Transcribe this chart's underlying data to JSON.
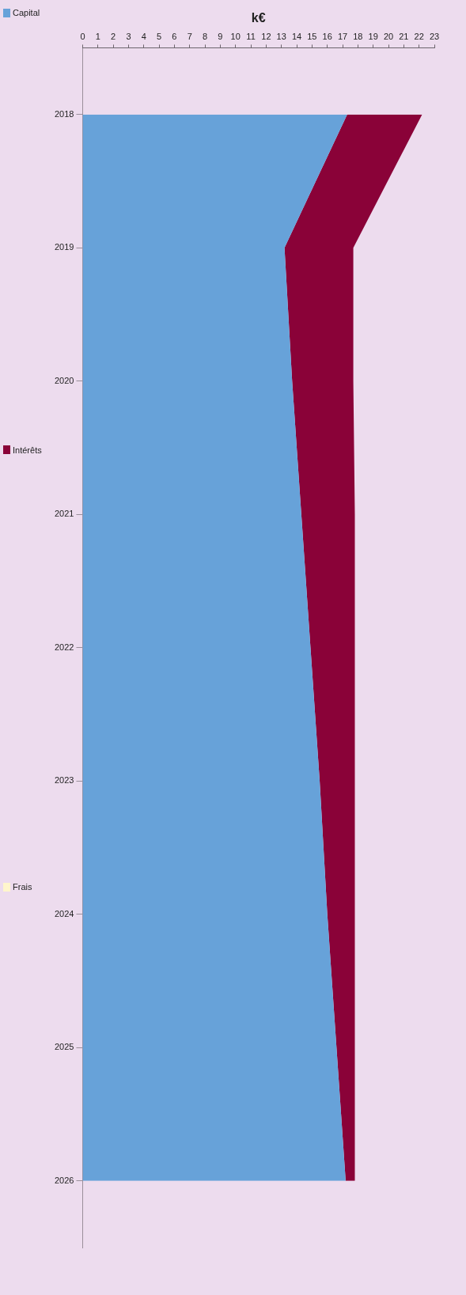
{
  "chart_data": {
    "type": "area",
    "orientation": "horizontal",
    "xlabel": "k€",
    "categories": [
      "2018",
      "2019",
      "2020",
      "2021",
      "2022",
      "2023",
      "2024",
      "2025",
      "2026"
    ],
    "stacked": true,
    "xlim": [
      0,
      23
    ],
    "xticks": [
      0,
      1,
      2,
      3,
      4,
      5,
      6,
      7,
      8,
      9,
      10,
      11,
      12,
      13,
      14,
      15,
      16,
      17,
      18,
      19,
      20,
      21,
      22,
      23
    ],
    "grid": false,
    "legend": "left",
    "series": [
      {
        "name": "Capital",
        "color": "#67a2d9",
        "values": [
          17.3,
          13.2,
          13.7,
          14.3,
          14.9,
          15.5,
          16.0,
          16.6,
          17.2
        ]
      },
      {
        "name": "Intérêts",
        "color": "#8a0238",
        "values": [
          4.9,
          4.5,
          4.0,
          3.5,
          2.9,
          2.3,
          1.8,
          1.2,
          0.6
        ]
      },
      {
        "name": "Frais",
        "color": "#fff6cc",
        "values": [
          null,
          null,
          null,
          null,
          null,
          null,
          null,
          null,
          null
        ]
      }
    ]
  }
}
